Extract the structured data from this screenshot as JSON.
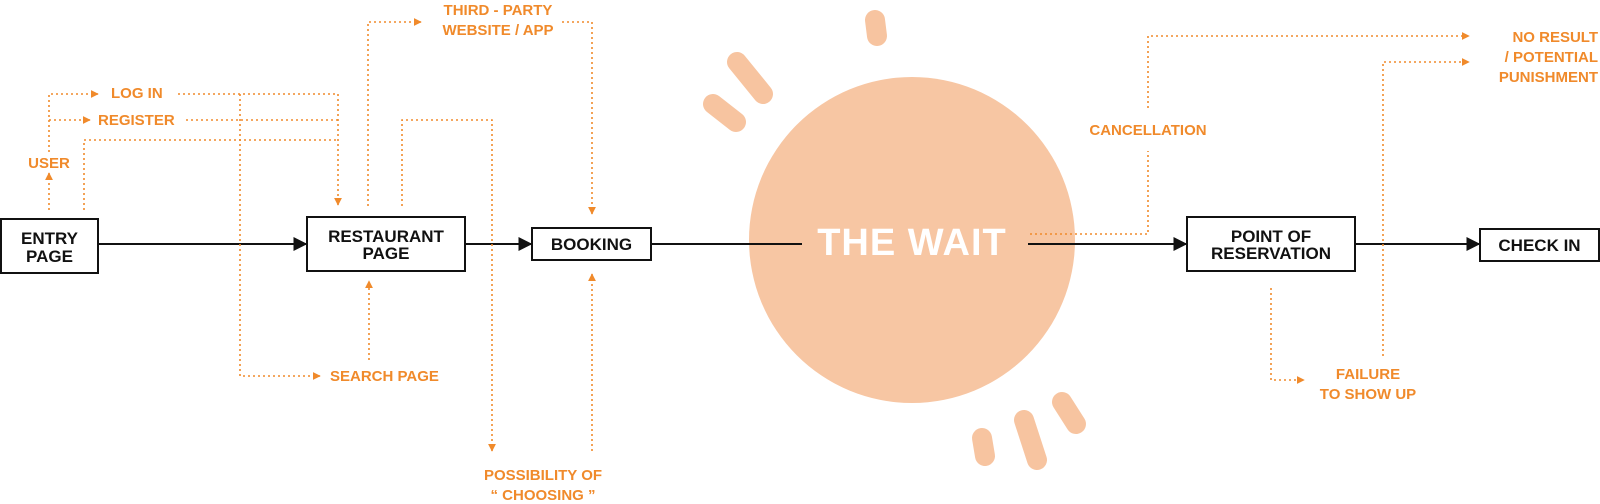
{
  "colors": {
    "accent": "#F08A2B",
    "circle": "#F7C6A3",
    "ink": "#111111",
    "wait_text": "#FFFFFF"
  },
  "nodes": {
    "entry": [
      "ENTRY",
      "PAGE"
    ],
    "restaurant": [
      "RESTAURANT",
      "PAGE"
    ],
    "booking": "BOOKING",
    "point": [
      "POINT OF",
      "RESERVATION"
    ],
    "checkin": "CHECK IN"
  },
  "center": {
    "label": "THE WAIT"
  },
  "labels": {
    "user": "USER",
    "login": "LOG IN",
    "register": "REGISTER",
    "third_party": [
      "THIRD - PARTY",
      "WEBSITE / APP"
    ],
    "search": "SEARCH PAGE",
    "possibility": [
      "POSSIBILITY OF",
      "“ CHOOSING ”"
    ],
    "cancellation": "CANCELLATION",
    "no_result": [
      "NO RESULT",
      "/ POTENTIAL",
      "PUNISHMENT"
    ],
    "failure": [
      "FAILURE",
      "TO SHOW UP"
    ]
  }
}
